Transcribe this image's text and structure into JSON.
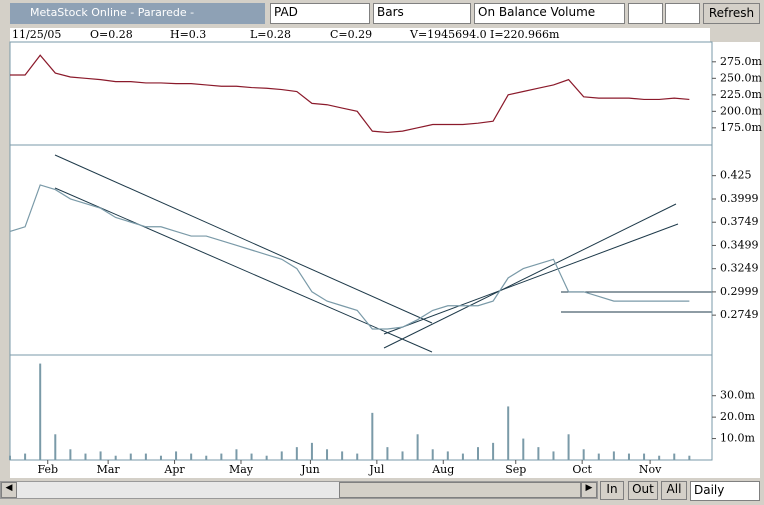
{
  "toolbar": {
    "title": "MetaStock Online - Pararede -",
    "symbol": "PAD",
    "style": "Bars",
    "indicator": "On Balance Volume",
    "button": "Refresh"
  },
  "info": {
    "date": "11/25/05",
    "open": "O=0.28",
    "high": "H=0.3",
    "low": "L=0.28",
    "close": "C=0.29",
    "volume": "V=1945694.0",
    "indicator": "I=220.966m"
  },
  "nav": {
    "zoom_in": "In",
    "zoom_out": "Out",
    "all": "All",
    "period": "Daily"
  },
  "chart_data": [
    {
      "type": "line",
      "color": "#8b1a2b",
      "xlim": [
        0,
        46.5
      ],
      "ylim": [
        149,
        305
      ],
      "yticks": [
        {
          "value": 275,
          "label": "275.0m"
        },
        {
          "value": 250,
          "label": "250.0m"
        },
        {
          "value": 225,
          "label": "225.0m"
        },
        {
          "value": 200,
          "label": "200.0m"
        },
        {
          "value": 175,
          "label": "175.0m"
        }
      ],
      "x": [
        0,
        1,
        2,
        3,
        4,
        5,
        6,
        7,
        8,
        9,
        10,
        11,
        12,
        13,
        14,
        15,
        16,
        17,
        18,
        19,
        20,
        21,
        22,
        23,
        24,
        25,
        26,
        27,
        28,
        29,
        30,
        31,
        32,
        33,
        34,
        35,
        36,
        37,
        38,
        39,
        40,
        41,
        42,
        43,
        44,
        45
      ],
      "values": [
        255,
        255,
        285,
        258,
        252,
        250,
        248,
        245,
        245,
        243,
        243,
        242,
        242,
        240,
        238,
        238,
        236,
        235,
        233,
        230,
        212,
        210,
        205,
        200,
        170,
        168,
        170,
        175,
        180,
        180,
        180,
        182,
        185,
        225,
        230,
        235,
        240,
        248,
        222,
        220,
        220,
        220,
        218,
        218,
        220,
        218
      ]
    },
    {
      "type": "line",
      "color": "#7a9aa8",
      "xlim": [
        0,
        46.5
      ],
      "ylim": [
        0.232,
        0.458
      ],
      "yticks": [
        0.425,
        0.3999,
        0.3749,
        0.3499,
        0.3249,
        0.2999,
        0.2749
      ],
      "x": [
        0,
        1,
        2,
        3,
        4,
        5,
        6,
        7,
        8,
        9,
        10,
        11,
        12,
        13,
        14,
        15,
        16,
        17,
        18,
        19,
        20,
        21,
        22,
        23,
        24,
        25,
        26,
        27,
        28,
        29,
        30,
        31,
        32,
        33,
        34,
        35,
        36,
        37,
        38,
        39,
        40,
        41,
        42,
        43,
        44,
        45
      ],
      "values": [
        0.365,
        0.37,
        0.415,
        0.41,
        0.4,
        0.395,
        0.39,
        0.38,
        0.375,
        0.37,
        0.37,
        0.365,
        0.36,
        0.36,
        0.355,
        0.35,
        0.345,
        0.34,
        0.335,
        0.325,
        0.3,
        0.29,
        0.285,
        0.28,
        0.26,
        0.26,
        0.262,
        0.27,
        0.28,
        0.285,
        0.285,
        0.285,
        0.29,
        0.315,
        0.325,
        0.33,
        0.335,
        0.3,
        0.3,
        0.295,
        0.29,
        0.29,
        0.29,
        0.29,
        0.29,
        0.29
      ]
    },
    {
      "type": "bar",
      "color": "#7a9aa8",
      "xlim": [
        0,
        46.5
      ],
      "ylim": [
        0,
        49
      ],
      "yticks": [
        {
          "value": 30,
          "label": "30.0m"
        },
        {
          "value": 20,
          "label": "20.0m"
        },
        {
          "value": 10,
          "label": "10.0m"
        }
      ],
      "xticks": [
        {
          "value": 2.5,
          "label": "Feb"
        },
        {
          "value": 6.5,
          "label": "Mar"
        },
        {
          "value": 10.9,
          "label": "Apr"
        },
        {
          "value": 15.3,
          "label": "May"
        },
        {
          "value": 19.9,
          "label": "Jun"
        },
        {
          "value": 24.3,
          "label": "Jul"
        },
        {
          "value": 28.7,
          "label": "Aug"
        },
        {
          "value": 33.5,
          "label": "Sep"
        },
        {
          "value": 37.9,
          "label": "Oct"
        },
        {
          "value": 42.4,
          "label": "Nov"
        }
      ],
      "x": [
        0,
        1,
        2,
        3,
        4,
        5,
        6,
        7,
        8,
        9,
        10,
        11,
        12,
        13,
        14,
        15,
        16,
        17,
        18,
        19,
        20,
        21,
        22,
        23,
        24,
        25,
        26,
        27,
        28,
        29,
        30,
        31,
        32,
        33,
        34,
        35,
        36,
        37,
        38,
        39,
        40,
        41,
        42,
        43,
        44,
        45
      ],
      "values": [
        2,
        3,
        45,
        12,
        5,
        3,
        4,
        2,
        3,
        3,
        2,
        4,
        3,
        2,
        3,
        5,
        3,
        2,
        4,
        6,
        8,
        5,
        4,
        3,
        22,
        6,
        4,
        12,
        5,
        4,
        3,
        6,
        8,
        25,
        10,
        6,
        4,
        12,
        5,
        3,
        4,
        3,
        3,
        2,
        3,
        2
      ]
    }
  ]
}
